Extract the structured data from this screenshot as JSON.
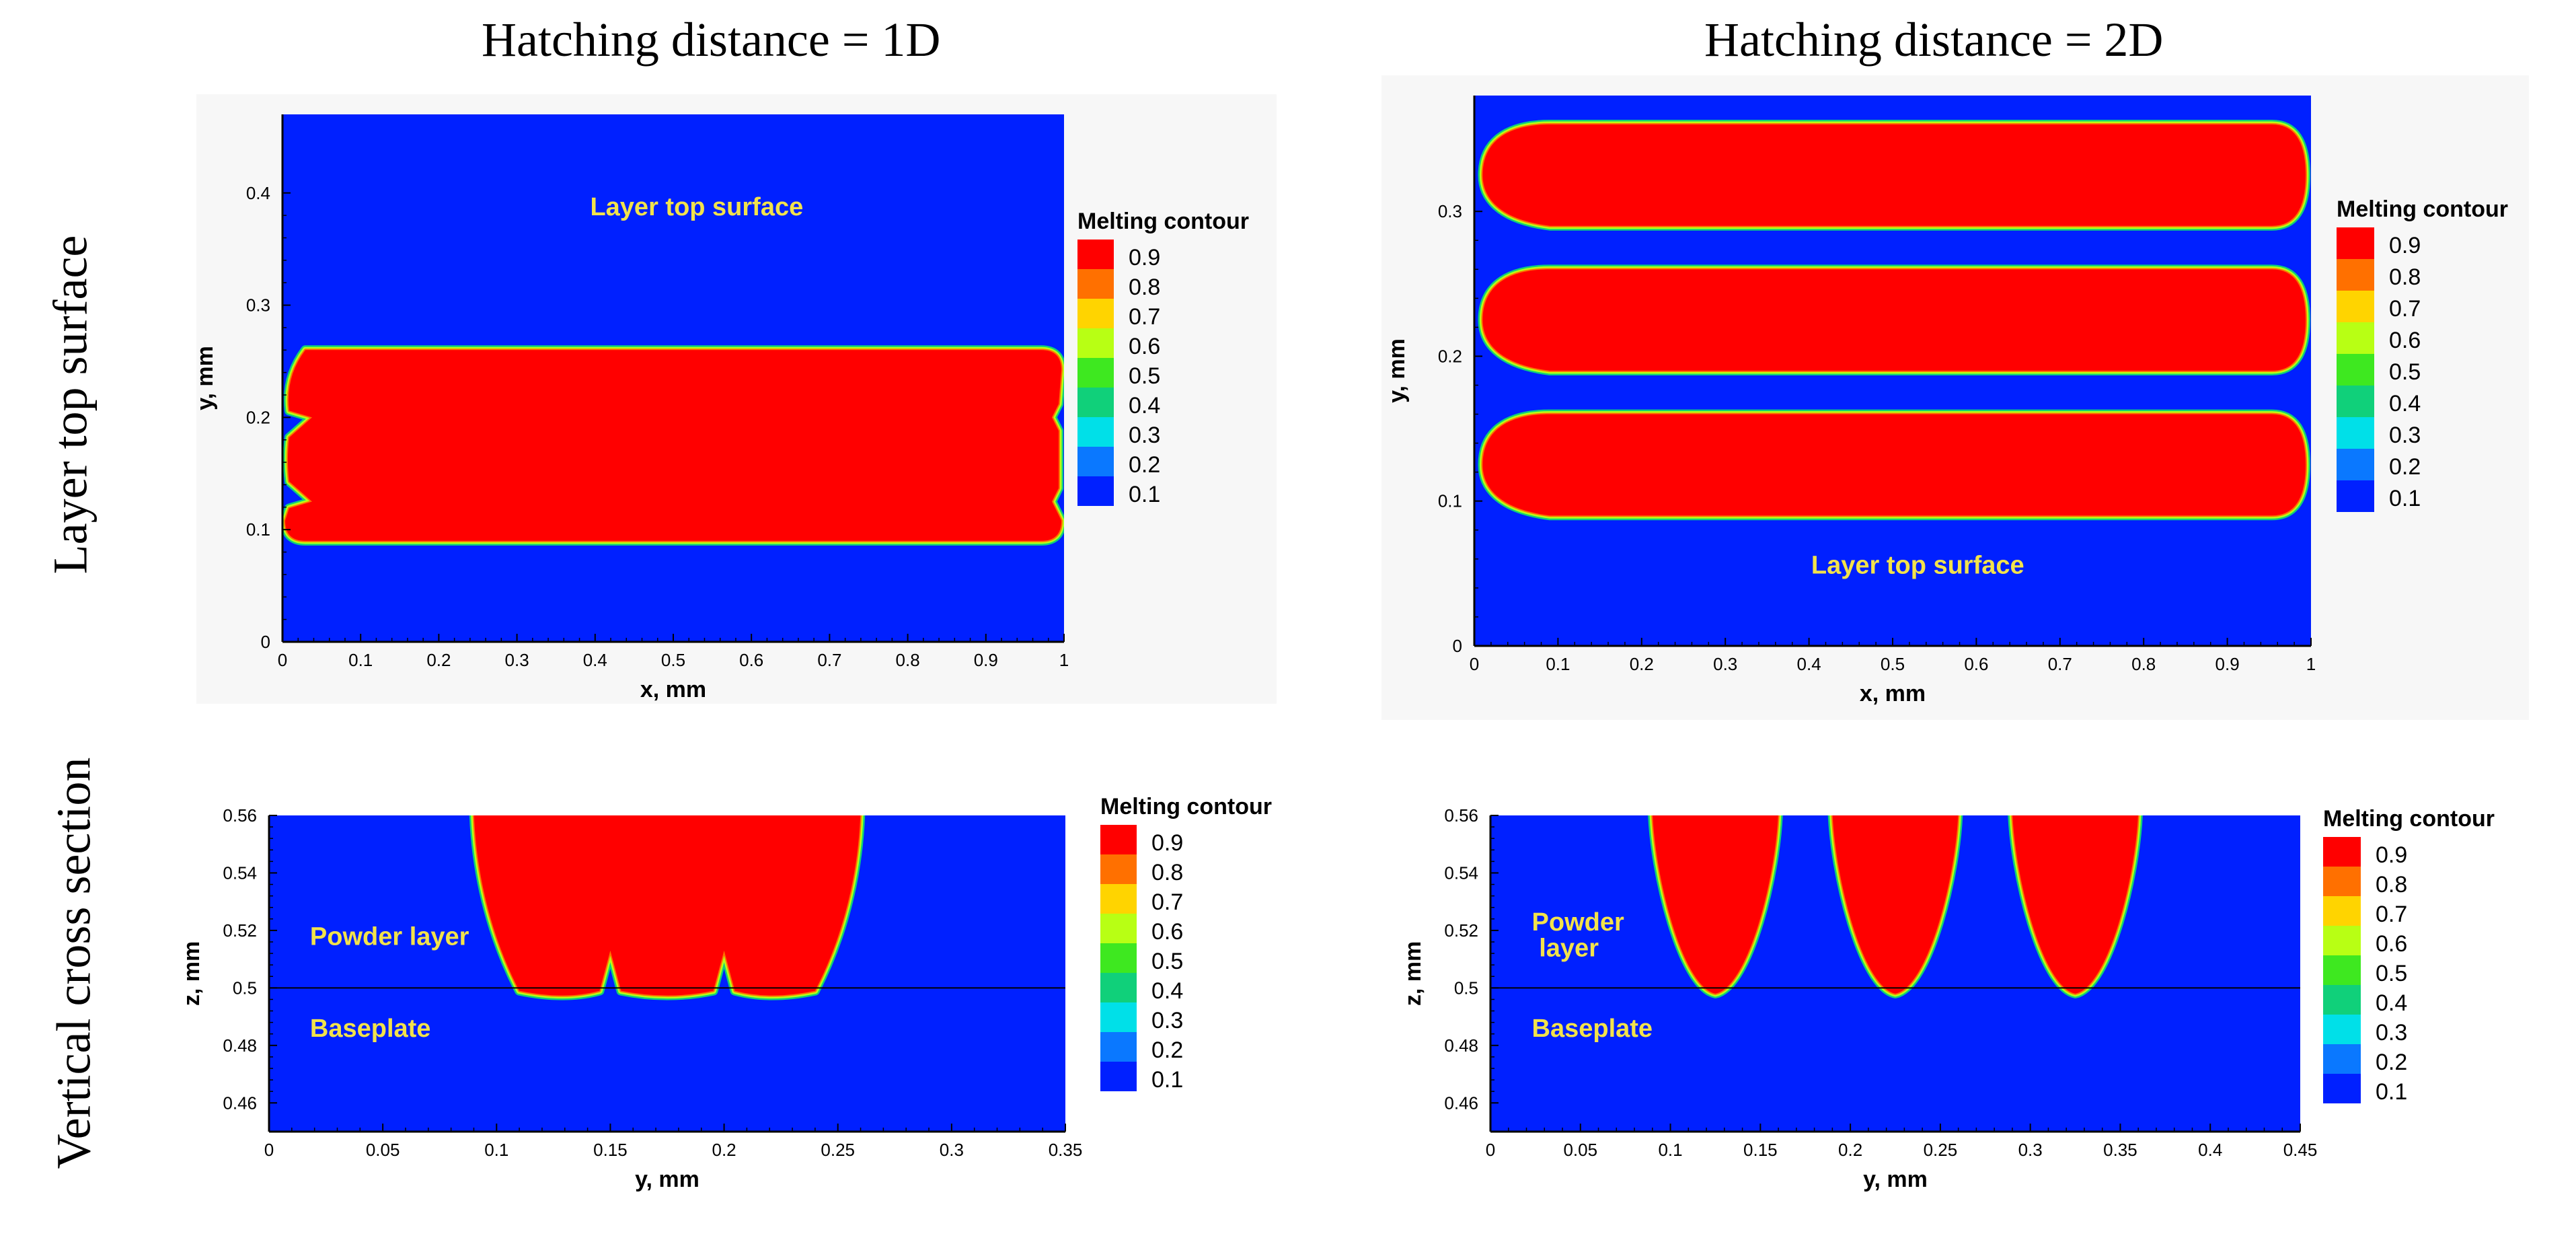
{
  "column_titles": [
    "Hatching distance = 1D",
    "Hatching distance = 2D"
  ],
  "row_titles": [
    "Layer top surface",
    "Vertical cross section"
  ],
  "legend": {
    "title": "Melting contour",
    "levels": [
      "0.9",
      "0.8",
      "0.7",
      "0.6",
      "0.5",
      "0.4",
      "0.3",
      "0.2",
      "0.1"
    ],
    "colors": [
      "#ff0000",
      "#ff7000",
      "#ffd400",
      "#b8ff14",
      "#3ee820",
      "#10d07a",
      "#00e0e8",
      "#0a78ff",
      "#0020ff"
    ]
  },
  "chart_data": [
    {
      "type": "heatmap",
      "panel": "top-left",
      "xlabel": "x, mm",
      "ylabel": "y, mm",
      "xlim": [
        0,
        1
      ],
      "ylim": [
        0,
        0.47
      ],
      "xticks": [
        0,
        0.1,
        0.2,
        0.3,
        0.4,
        0.5,
        0.6,
        0.7,
        0.8,
        0.9,
        1
      ],
      "xtick_labels": [
        "0",
        "0.1",
        "0.2",
        "0.3",
        "0.4",
        "0.5",
        "0.6",
        "0.7",
        "0.8",
        "0.9",
        "1"
      ],
      "yticks": [
        0,
        0.1,
        0.2,
        0.3,
        0.4
      ],
      "ytick_labels": [
        "0",
        "0.1",
        "0.2",
        "0.3",
        "0.4"
      ],
      "annotation": "Layer top surface",
      "annotation_pos": [
        0.53,
        0.38
      ],
      "melted_tracks": [
        {
          "x0": 0,
          "x1": 1,
          "y0": 0.09,
          "y1": 0.26,
          "notches_at_y": [
            0.125,
            0.2
          ]
        }
      ]
    },
    {
      "type": "heatmap",
      "panel": "top-right",
      "xlabel": "x, mm",
      "ylabel": "y, mm",
      "xlim": [
        0,
        1
      ],
      "ylim": [
        0,
        0.38
      ],
      "xticks": [
        0,
        0.1,
        0.2,
        0.3,
        0.4,
        0.5,
        0.6,
        0.7,
        0.8,
        0.9,
        1
      ],
      "xtick_labels": [
        "0",
        "0.1",
        "0.2",
        "0.3",
        "0.4",
        "0.5",
        "0.6",
        "0.7",
        "0.8",
        "0.9",
        "1"
      ],
      "yticks": [
        0,
        0.1,
        0.2,
        0.3
      ],
      "ytick_labels": [
        "0",
        "0.1",
        "0.2",
        "0.3"
      ],
      "annotation": "Layer top surface",
      "annotation_pos": [
        0.53,
        0.05
      ],
      "melted_tracks": [
        {
          "x0": 0.01,
          "x1": 1,
          "y0": 0.09,
          "y1": 0.16
        },
        {
          "x0": 0.01,
          "x1": 1,
          "y0": 0.19,
          "y1": 0.26
        },
        {
          "x0": 0.01,
          "x1": 1,
          "y0": 0.29,
          "y1": 0.36
        }
      ]
    },
    {
      "type": "heatmap",
      "panel": "bottom-left",
      "xlabel": "y, mm",
      "ylabel": "z, mm",
      "xlim": [
        0,
        0.35
      ],
      "ylim": [
        0.45,
        0.56
      ],
      "xticks": [
        0,
        0.05,
        0.1,
        0.15,
        0.2,
        0.25,
        0.3,
        0.35
      ],
      "xtick_labels": [
        "0",
        "0.05",
        "0.1",
        "0.15",
        "0.2",
        "0.25",
        "0.3",
        "0.35"
      ],
      "yticks": [
        0.46,
        0.48,
        0.5,
        0.52,
        0.54,
        0.56
      ],
      "ytick_labels": [
        "0.46",
        "0.48",
        "0.5",
        "0.52",
        "0.54",
        "0.56"
      ],
      "baseplate_z": 0.5,
      "annotations": [
        {
          "text": "Powder layer",
          "pos": [
            0.018,
            0.515
          ]
        },
        {
          "text": "Baseplate",
          "pos": [
            0.018,
            0.483
          ]
        }
      ],
      "melt_pools": [
        {
          "y_left_top": 0.09,
          "y_right_top": 0.26,
          "y_left_bottom": 0.11,
          "y_right_bottom": 0.24,
          "bottom_z": 0.499,
          "peaks_at_y": [
            0.15,
            0.2
          ],
          "peak_z": 0.513
        }
      ]
    },
    {
      "type": "heatmap",
      "panel": "bottom-right",
      "xlabel": "y, mm",
      "ylabel": "z, mm",
      "xlim": [
        0,
        0.45
      ],
      "ylim": [
        0.45,
        0.56
      ],
      "xticks": [
        0,
        0.05,
        0.1,
        0.15,
        0.2,
        0.25,
        0.3,
        0.35,
        0.4,
        0.45
      ],
      "xtick_labels": [
        "0",
        "0.05",
        "0.1",
        "0.15",
        "0.2",
        "0.25",
        "0.3",
        "0.35",
        "0.4",
        "0.45"
      ],
      "yticks": [
        0.46,
        0.48,
        0.5,
        0.52,
        0.54,
        0.56
      ],
      "ytick_labels": [
        "0.46",
        "0.48",
        "0.5",
        "0.52",
        "0.54",
        "0.56"
      ],
      "baseplate_z": 0.5,
      "annotations": [
        {
          "text": "Powder",
          "pos": [
            0.023,
            0.52
          ]
        },
        {
          "text": "layer",
          "pos": [
            0.027,
            0.511
          ]
        },
        {
          "text": "Baseplate",
          "pos": [
            0.023,
            0.483
          ]
        }
      ],
      "melt_pools": [
        {
          "y_left_top": 0.09,
          "y_right_top": 0.16,
          "center": 0.125,
          "bottom_z": 0.498
        },
        {
          "y_left_top": 0.19,
          "y_right_top": 0.26,
          "center": 0.225,
          "bottom_z": 0.498
        },
        {
          "y_left_top": 0.29,
          "y_right_top": 0.36,
          "center": 0.325,
          "bottom_z": 0.498
        }
      ]
    }
  ]
}
